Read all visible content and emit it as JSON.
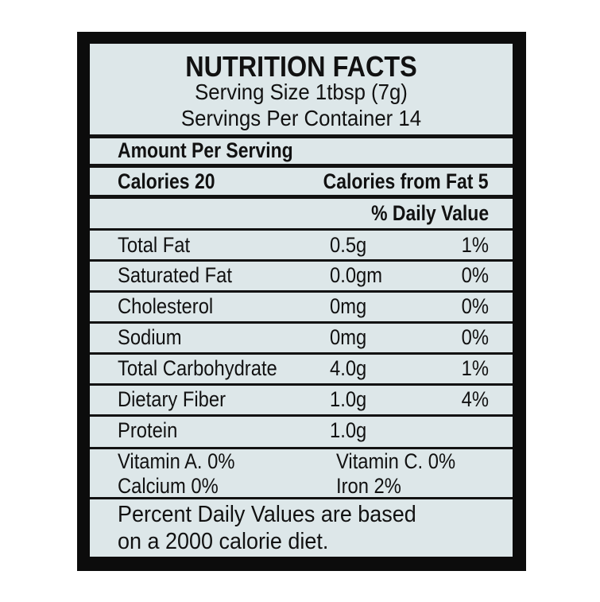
{
  "label": {
    "title": "NUTRITION FACTS",
    "serving_size": "Serving Size  1tbsp (7g)",
    "servings_per_container": "Servings Per Container 14",
    "amount_per_serving": "Amount Per Serving",
    "calories": "Calories 20",
    "calories_from_fat": "Calories from Fat 5",
    "daily_value_header": "% Daily Value",
    "nutrients": [
      {
        "name": "Total Fat",
        "amount": "0.5g",
        "dv": "1%"
      },
      {
        "name": "Saturated Fat",
        "amount": "0.0gm",
        "dv": "0%"
      },
      {
        "name": "Cholesterol",
        "amount": "0mg",
        "dv": "0%"
      },
      {
        "name": "Sodium",
        "amount": "0mg",
        "dv": "0%"
      },
      {
        "name": "Total Carbohydrate",
        "amount": "4.0g",
        "dv": "1%"
      },
      {
        "name": "Dietary Fiber",
        "amount": "1.0g",
        "dv": "4%"
      },
      {
        "name": "Protein",
        "amount": "1.0g",
        "dv": ""
      }
    ],
    "vitamins": {
      "vitamin_a": "Vitamin A.  0%",
      "vitamin_c": "Vitamin C.  0%",
      "calcium": "Calcium     0%",
      "iron": "Iron          2%"
    },
    "footnote_1": "Percent Daily Values are based",
    "footnote_2": "on a 2000 calorie diet."
  },
  "colors": {
    "panel": "#dde7e9",
    "frame": "#0c0c0c"
  }
}
